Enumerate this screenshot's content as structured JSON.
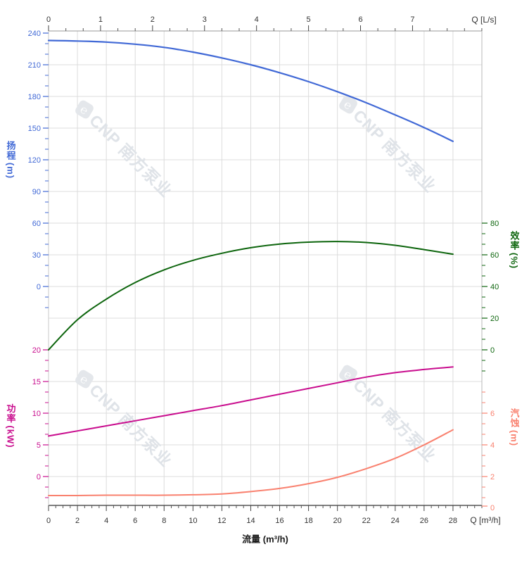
{
  "page": {
    "background": "#ffffff"
  },
  "watermark": {
    "logo_glyph": "℮",
    "brand": "CNP",
    "company": "南方泵业",
    "color": "#dfe3e8"
  },
  "axes": {
    "top": {
      "unit_label": "Q [L/s]"
    },
    "bottom": {
      "unit_label": "Q [m³/h]",
      "title": "流量 (m³/h)"
    },
    "head": {
      "title": "扬程",
      "unit": "(m)"
    },
    "power": {
      "title": "功率",
      "unit": "(kW)"
    },
    "efficiency": {
      "title": "效率",
      "unit": "(%)"
    },
    "npsh": {
      "title": "汽蚀",
      "unit": "(m)"
    }
  },
  "chart_data": {
    "type": "line",
    "description": "Centrifugal pump performance curves: head, efficiency, power and NPSH versus flow",
    "x_unit": "m³/h",
    "x": [
      0,
      2,
      4,
      6,
      8,
      10,
      12,
      14,
      16,
      18,
      20,
      22,
      24,
      26,
      28
    ],
    "x_axis_bottom": {
      "label": "流量 (m³/h)",
      "unit_text": "Q [m³/h]",
      "range": [
        0,
        30
      ],
      "major_ticks": [
        0,
        2,
        4,
        6,
        8,
        10,
        12,
        14,
        16,
        18,
        20,
        22,
        24,
        26,
        28
      ],
      "minor_step": 0.5
    },
    "x_axis_top": {
      "unit_text": "Q [L/s]",
      "range": [
        0,
        8.333
      ],
      "major_ticks": [
        0,
        1,
        2,
        3,
        4,
        5,
        6,
        7
      ],
      "minor_step": 0.3333
    },
    "y_axes": {
      "head": {
        "label": "扬程 (m)",
        "color": "#4169d6",
        "range": [
          -20,
          240
        ],
        "major_ticks": [
          240,
          210,
          180,
          150,
          120,
          90,
          60,
          30,
          0
        ],
        "minor_step": 10
      },
      "efficiency": {
        "label": "效率 (%)",
        "color": "#0d650d",
        "range": [
          -13.33,
          80
        ],
        "major_ticks": [
          80,
          60,
          40,
          20,
          0
        ],
        "minor_step": 6.6667
      },
      "power": {
        "label": "功率 (kW)",
        "color": "#c90d8e",
        "range": [
          -3.33,
          20
        ],
        "major_ticks": [
          20,
          15,
          10,
          5,
          0
        ],
        "minor_step": 1.6667
      },
      "npsh": {
        "label": "汽蚀 (m)",
        "color": "#f9816f",
        "range": [
          0,
          7.333
        ],
        "major_ticks": [
          6,
          4,
          2,
          0
        ],
        "minor_step": 0.6667
      }
    },
    "series": [
      {
        "name": "扬程",
        "axis": "head",
        "unit": "m",
        "values": [
          233,
          232.5,
          231.5,
          229.5,
          226.5,
          222,
          216.5,
          210,
          202.5,
          194,
          184.5,
          174,
          162.5,
          150.5,
          137.5
        ]
      },
      {
        "name": "效率",
        "axis": "efficiency",
        "unit": "%",
        "values": [
          0,
          19,
          32,
          42.5,
          50.5,
          56.5,
          61,
          64.5,
          66.8,
          68,
          68.4,
          67.8,
          66,
          63.3,
          60.4
        ]
      },
      {
        "name": "功率",
        "axis": "power",
        "unit": "kW",
        "values": [
          6.4,
          7.2,
          8,
          8.8,
          9.6,
          10.4,
          11.2,
          12.1,
          13,
          13.9,
          14.8,
          15.7,
          16.4,
          16.9,
          17.3
        ]
      },
      {
        "name": "汽蚀",
        "axis": "npsh",
        "unit": "m",
        "values": [
          0.8,
          0.8,
          0.82,
          0.82,
          0.82,
          0.85,
          0.9,
          1.05,
          1.25,
          1.55,
          1.95,
          2.5,
          3.15,
          4,
          4.95
        ]
      }
    ],
    "grid": true,
    "legend": "none"
  }
}
